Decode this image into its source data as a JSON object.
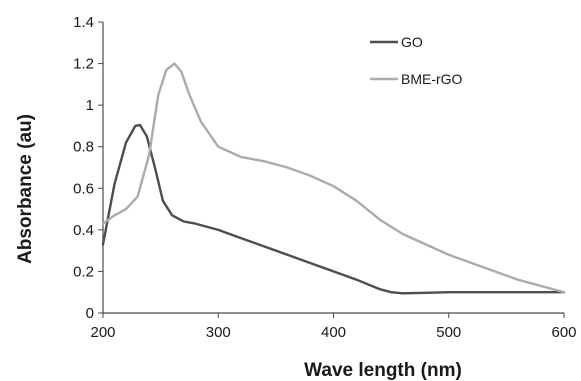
{
  "chart_data": {
    "type": "line",
    "xlabel": "Wave length (nm)",
    "ylabel": "Absorbance (au)",
    "xlim": [
      200,
      600
    ],
    "ylim": [
      0,
      1.4
    ],
    "x_ticks": [
      200,
      300,
      400,
      500,
      600
    ],
    "x_tick_labels": [
      "200",
      "300",
      "400",
      "500",
      "600"
    ],
    "y_ticks": [
      0,
      0.2,
      0.4,
      0.6,
      0.8,
      1.0,
      1.2,
      1.4
    ],
    "y_tick_labels": [
      "0",
      "0.2",
      "0.4",
      "0.6",
      "0.8",
      "1",
      "1.2",
      "1.4"
    ],
    "grid": false,
    "legend_position": "top-right",
    "series": [
      {
        "name": "GO",
        "color": "#4d4d4d",
        "x": [
          200,
          210,
          220,
          228,
          232,
          238,
          245,
          252,
          260,
          270,
          280,
          300,
          320,
          340,
          360,
          380,
          400,
          420,
          440,
          450,
          460,
          480,
          500,
          520,
          540,
          560,
          580,
          600
        ],
        "y": [
          0.33,
          0.62,
          0.82,
          0.9,
          0.905,
          0.85,
          0.7,
          0.54,
          0.47,
          0.44,
          0.43,
          0.4,
          0.36,
          0.32,
          0.28,
          0.24,
          0.2,
          0.16,
          0.115,
          0.1,
          0.095,
          0.097,
          0.1,
          0.1,
          0.1,
          0.1,
          0.1,
          0.1
        ]
      },
      {
        "name": "BME-rGO",
        "color": "#ababab",
        "x": [
          200,
          210,
          220,
          230,
          240,
          248,
          255,
          262,
          268,
          275,
          285,
          300,
          320,
          340,
          360,
          380,
          400,
          420,
          440,
          460,
          480,
          500,
          520,
          540,
          560,
          580,
          600
        ],
        "y": [
          0.43,
          0.47,
          0.5,
          0.56,
          0.76,
          1.05,
          1.17,
          1.2,
          1.16,
          1.05,
          0.92,
          0.8,
          0.75,
          0.73,
          0.7,
          0.66,
          0.61,
          0.54,
          0.45,
          0.38,
          0.33,
          0.28,
          0.24,
          0.2,
          0.16,
          0.13,
          0.1
        ]
      }
    ]
  }
}
